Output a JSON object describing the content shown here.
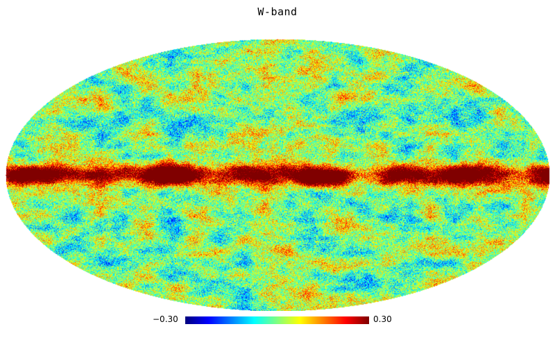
{
  "map": {
    "title": "W-band",
    "projection": "mollweide",
    "colormap": "jet",
    "galactic_plane_color": "#8b0000",
    "colorbar": {
      "min_label": "−0.30",
      "max_label": "0.30",
      "min_value": -0.3,
      "max_value": 0.3,
      "colors": [
        "#00007f",
        "#0000ff",
        "#00ffff",
        "#7fff7f",
        "#ffff00",
        "#ff7f00",
        "#ff0000",
        "#7f0000"
      ]
    }
  }
}
